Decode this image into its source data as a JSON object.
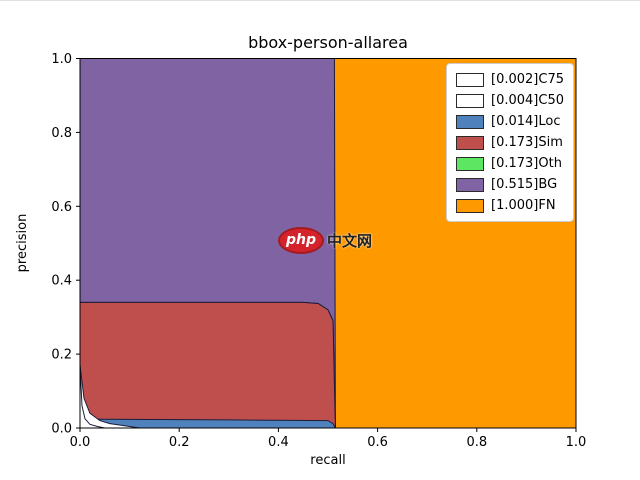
{
  "watermark": {
    "badge": "php",
    "text": "中文网"
  },
  "chart_data": {
    "type": "area",
    "title": "bbox-person-allarea",
    "xlabel": "recall",
    "ylabel": "precision",
    "xlim": [
      0,
      1
    ],
    "ylim": [
      0,
      1
    ],
    "xtick_labels": [
      "0.0",
      "0.2",
      "0.4",
      "0.6",
      "0.8",
      "1.0"
    ],
    "ytick_labels": [
      "0.0",
      "0.2",
      "0.4",
      "0.6",
      "0.8",
      "1.0"
    ],
    "grid": false,
    "legend_position": "upper right",
    "edge_color": "#1b1b3a",
    "series": [
      {
        "name": "[0.002]C75",
        "ap": 0.002,
        "color": "#ffffff",
        "curve": [
          [
            0,
            0.17
          ],
          [
            0.004,
            0.06
          ],
          [
            0.01,
            0.025
          ],
          [
            0.02,
            0.01
          ],
          [
            0.035,
            0.004
          ],
          [
            0.05,
            0
          ]
        ]
      },
      {
        "name": "[0.004]C50",
        "ap": 0.004,
        "color": "#ffffff",
        "curve": [
          [
            0,
            0.17
          ],
          [
            0.008,
            0.08
          ],
          [
            0.02,
            0.04
          ],
          [
            0.04,
            0.02
          ],
          [
            0.06,
            0.012
          ],
          [
            0.09,
            0.006
          ],
          [
            0.12,
            0
          ]
        ]
      },
      {
        "name": "[0.014]Loc",
        "ap": 0.014,
        "color": "#4f82bd",
        "curve": [
          [
            0,
            0.024
          ],
          [
            0.3,
            0.022
          ],
          [
            0.5,
            0.02
          ],
          [
            0.51,
            0.012
          ],
          [
            0.515,
            0
          ]
        ]
      },
      {
        "name": "[0.173]Sim",
        "ap": 0.173,
        "color": "#bf4f4d",
        "curve": [
          [
            0,
            0.34
          ],
          [
            0.45,
            0.34
          ],
          [
            0.48,
            0.337
          ],
          [
            0.5,
            0.32
          ],
          [
            0.51,
            0.29
          ],
          [
            0.515,
            0
          ]
        ]
      },
      {
        "name": "[0.173]Oth",
        "ap": 0.173,
        "color": "#5ce661",
        "curve": [
          [
            0,
            0.34
          ],
          [
            0.45,
            0.34
          ],
          [
            0.48,
            0.337
          ],
          [
            0.5,
            0.32
          ],
          [
            0.51,
            0.29
          ],
          [
            0.515,
            0
          ]
        ]
      },
      {
        "name": "[0.515]BG",
        "ap": 0.515,
        "color": "#8063a3",
        "curve": [
          [
            0,
            1.0
          ],
          [
            0.513,
            1.0
          ],
          [
            0.515,
            0
          ]
        ]
      },
      {
        "name": "[1.000]FN",
        "ap": 1.0,
        "color": "#ff9900",
        "curve": [
          [
            0,
            1.0
          ],
          [
            1.0,
            1.0
          ]
        ]
      }
    ]
  }
}
